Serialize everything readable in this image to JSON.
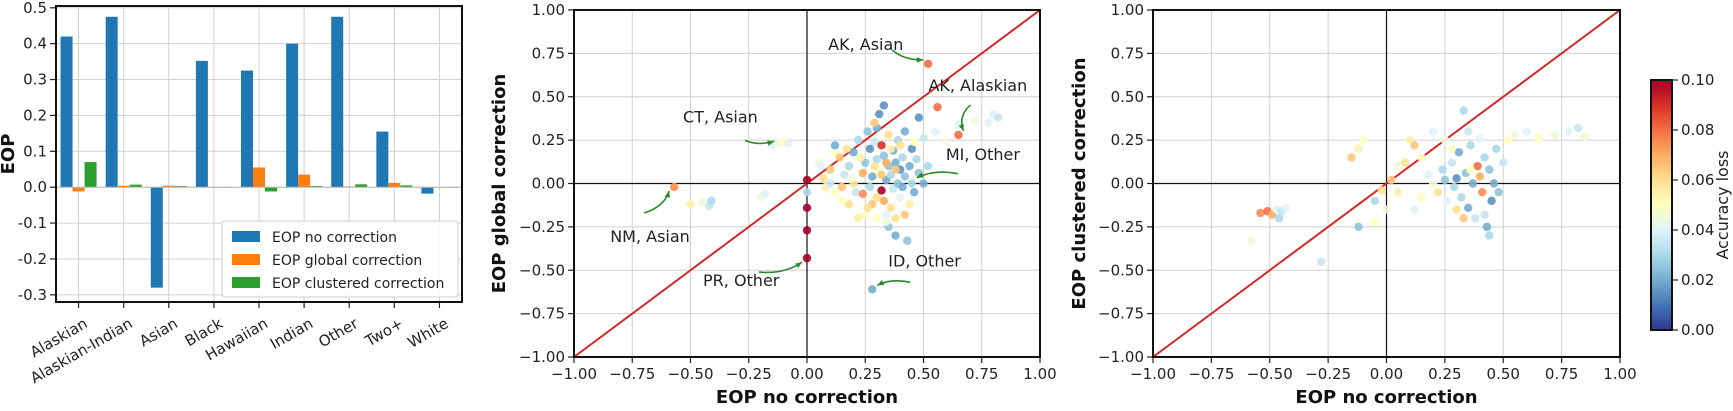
{
  "chart_data": [
    {
      "type": "bar",
      "title": "",
      "xlabel": "",
      "ylabel": "EOP",
      "ylim": [
        -0.32,
        0.505
      ],
      "yticks": [
        -0.3,
        -0.2,
        -0.1,
        0.0,
        0.1,
        0.2,
        0.3,
        0.4,
        0.5
      ],
      "ytick_labels": [
        "-0.3",
        "-0.2",
        "-0.1",
        "0.0",
        "0.1",
        "0.2",
        "0.3",
        "0.4",
        "0.5"
      ],
      "grid": true,
      "legend_position": "bottom-right",
      "categories": [
        "Alaskian",
        "Alaskian-Indian",
        "Asian",
        "Black",
        "Hawaiian",
        "Indian",
        "Other",
        "Two+",
        "White"
      ],
      "series": [
        {
          "name": "EOP no correction",
          "color": "#1f77b4",
          "values": [
            0.42,
            0.475,
            -0.28,
            0.352,
            0.325,
            0.4,
            0.475,
            0.155,
            -0.018
          ]
        },
        {
          "name": "EOP global correction",
          "color": "#ff7f0e",
          "values": [
            -0.012,
            0.004,
            0.004,
            0.0,
            0.055,
            0.035,
            0.002,
            0.012,
            0.0
          ]
        },
        {
          "name": "EOP clustered correction",
          "color": "#2ca02c",
          "values": [
            0.07,
            0.007,
            0.003,
            0.0,
            -0.012,
            0.003,
            0.008,
            0.005,
            0.0
          ]
        }
      ]
    },
    {
      "type": "scatter",
      "xlabel": "EOP no correction",
      "ylabel": "EOP global correction",
      "xlim": [
        -1.0,
        1.0
      ],
      "ylim": [
        -1.0,
        1.0
      ],
      "xticks": [
        -1.0,
        -0.75,
        -0.5,
        -0.25,
        0.0,
        0.25,
        0.5,
        0.75,
        1.0
      ],
      "xtick_labels": [
        "−1.00",
        "−0.75",
        "−0.50",
        "−0.25",
        "0.00",
        "0.25",
        "0.50",
        "0.75",
        "1.00"
      ],
      "yticks": [
        -1.0,
        -0.75,
        -0.5,
        -0.25,
        0.0,
        0.25,
        0.5,
        0.75,
        1.0
      ],
      "ytick_labels": [
        "−1.00",
        "−0.75",
        "−0.50",
        "−0.25",
        "0.00",
        "0.25",
        "0.50",
        "0.75",
        "1.00"
      ],
      "grid": true,
      "diagonal_color": "#d62728",
      "points": [
        [
          0.52,
          0.69,
          0.08
        ],
        [
          0.56,
          0.44,
          0.08
        ],
        [
          0.65,
          0.28,
          0.08
        ],
        [
          -0.57,
          -0.02,
          0.075
        ],
        [
          -0.5,
          -0.12,
          0.055
        ],
        [
          -0.45,
          -0.11,
          0.045
        ],
        [
          -0.42,
          -0.13,
          0.035
        ],
        [
          -0.41,
          -0.1,
          0.03
        ],
        [
          -0.15,
          0.22,
          0.04
        ],
        [
          -0.12,
          0.23,
          0.045
        ],
        [
          -0.1,
          0.24,
          0.05
        ],
        [
          -0.08,
          0.23,
          0.04
        ],
        [
          -0.2,
          -0.08,
          0.045
        ],
        [
          -0.18,
          -0.06,
          0.04
        ],
        [
          0.0,
          0.02,
          0.1
        ],
        [
          0.0,
          -0.14,
          0.1
        ],
        [
          0.0,
          -0.27,
          0.1
        ],
        [
          0.0,
          -0.43,
          0.1
        ],
        [
          0.0,
          -0.05,
          0.03
        ],
        [
          0.05,
          0.12,
          0.045
        ],
        [
          0.07,
          0.03,
          0.06
        ],
        [
          0.08,
          -0.02,
          0.055
        ],
        [
          0.1,
          0.08,
          0.065
        ],
        [
          0.12,
          0.18,
          0.05
        ],
        [
          0.12,
          0.22,
          0.02
        ],
        [
          0.14,
          0.15,
          0.065
        ],
        [
          0.15,
          -0.1,
          0.05
        ],
        [
          0.16,
          0.05,
          0.035
        ],
        [
          0.18,
          -0.12,
          0.06
        ],
        [
          0.18,
          0.1,
          0.03
        ],
        [
          0.2,
          0.0,
          0.06
        ],
        [
          0.2,
          0.18,
          0.02
        ],
        [
          0.21,
          -0.05,
          0.035
        ],
        [
          0.22,
          0.25,
          0.03
        ],
        [
          0.24,
          0.06,
          0.07
        ],
        [
          0.25,
          -0.18,
          0.05
        ],
        [
          0.25,
          0.12,
          0.025
        ],
        [
          0.26,
          0.3,
          0.025
        ],
        [
          0.27,
          0.2,
          0.015
        ],
        [
          0.27,
          -0.02,
          0.03
        ],
        [
          0.28,
          0.04,
          0.02
        ],
        [
          0.28,
          -0.12,
          0.065
        ],
        [
          0.29,
          0.24,
          0.035
        ],
        [
          0.3,
          0.32,
          0.02
        ],
        [
          0.3,
          0.14,
          0.03
        ],
        [
          0.3,
          -0.08,
          0.06
        ],
        [
          0.31,
          0.4,
          0.015
        ],
        [
          0.31,
          0.07,
          0.05
        ],
        [
          0.32,
          0.22,
          0.09
        ],
        [
          0.32,
          -0.04,
          0.1
        ],
        [
          0.33,
          0.45,
          0.015
        ],
        [
          0.33,
          0.16,
          0.025
        ],
        [
          0.33,
          -0.1,
          0.07
        ],
        [
          0.34,
          0.02,
          0.02
        ],
        [
          0.34,
          -0.18,
          0.04
        ],
        [
          0.35,
          0.1,
          0.025
        ],
        [
          0.35,
          0.28,
          0.06
        ],
        [
          0.35,
          -0.25,
          0.025
        ],
        [
          0.36,
          0.05,
          0.03
        ],
        [
          0.36,
          -0.14,
          0.06
        ],
        [
          0.37,
          0.19,
          0.02
        ],
        [
          0.37,
          -0.03,
          0.035
        ],
        [
          0.38,
          0.12,
          0.02
        ],
        [
          0.38,
          -0.3,
          0.02
        ],
        [
          0.39,
          0.25,
          0.03
        ],
        [
          0.39,
          0.0,
          0.025
        ],
        [
          0.4,
          0.08,
          0.015
        ],
        [
          0.4,
          -0.08,
          0.04
        ],
        [
          0.41,
          0.15,
          0.03
        ],
        [
          0.41,
          -0.02,
          0.02
        ],
        [
          0.42,
          0.3,
          0.02
        ],
        [
          0.42,
          0.04,
          0.025
        ],
        [
          0.43,
          -0.33,
          0.025
        ],
        [
          0.44,
          0.1,
          0.02
        ],
        [
          0.45,
          0.0,
          0.03
        ],
        [
          0.45,
          0.2,
          0.015
        ],
        [
          0.46,
          -0.05,
          0.02
        ],
        [
          0.47,
          0.14,
          0.03
        ],
        [
          0.48,
          0.06,
          0.025
        ],
        [
          0.48,
          0.38,
          0.015
        ],
        [
          0.5,
          0.0,
          0.02
        ],
        [
          0.5,
          0.26,
          0.035
        ],
        [
          0.52,
          0.1,
          0.03
        ],
        [
          0.55,
          0.3,
          0.04
        ],
        [
          0.6,
          0.24,
          0.045
        ],
        [
          0.65,
          0.34,
          0.04
        ],
        [
          0.72,
          0.36,
          0.045
        ],
        [
          0.78,
          0.35,
          0.04
        ],
        [
          0.8,
          0.4,
          0.04
        ],
        [
          0.82,
          0.38,
          0.035
        ],
        [
          0.28,
          -0.61,
          0.02
        ],
        [
          0.22,
          -0.2,
          0.055
        ],
        [
          0.3,
          -0.2,
          0.05
        ],
        [
          0.34,
          -0.22,
          0.045
        ],
        [
          0.26,
          -0.14,
          0.06
        ],
        [
          0.15,
          -0.02,
          0.065
        ],
        [
          0.19,
          0.03,
          0.045
        ],
        [
          0.23,
          0.15,
          0.055
        ],
        [
          0.29,
          0.1,
          0.06
        ],
        [
          0.32,
          0.05,
          0.065
        ],
        [
          0.36,
          0.2,
          0.055
        ],
        [
          0.4,
          0.22,
          0.06
        ],
        [
          0.44,
          -0.12,
          0.055
        ],
        [
          0.38,
          -0.2,
          0.06
        ],
        [
          0.46,
          0.24,
          0.05
        ],
        [
          0.42,
          -0.18,
          0.065
        ],
        [
          0.1,
          0.0,
          0.035
        ],
        [
          0.12,
          -0.05,
          0.05
        ],
        [
          0.06,
          0.1,
          0.04
        ],
        [
          0.17,
          0.2,
          0.06
        ],
        [
          0.29,
          0.35,
          0.065
        ],
        [
          0.34,
          0.12,
          0.07
        ],
        [
          0.24,
          -0.06,
          0.075
        ],
        [
          0.38,
          0.08,
          0.065
        ]
      ],
      "annotations": [
        {
          "text": "AK, Asian",
          "x": 0.52,
          "y": 0.69
        },
        {
          "text": "AK, Alaskian",
          "x": 0.65,
          "y": 0.28
        },
        {
          "text": "CT, Asian",
          "x": -0.12,
          "y": 0.22
        },
        {
          "text": "MI, Other",
          "x": 0.45,
          "y": 0.01
        },
        {
          "text": "NM, Asian",
          "x": -0.57,
          "y": -0.02
        },
        {
          "text": "PR, Other",
          "x": 0.0,
          "y": -0.43
        },
        {
          "text": "ID, Other",
          "x": 0.28,
          "y": -0.61
        }
      ]
    },
    {
      "type": "scatter",
      "xlabel": "EOP no correction",
      "ylabel": "EOP clustered correction",
      "xlim": [
        -1.0,
        1.0
      ],
      "ylim": [
        -1.0,
        1.0
      ],
      "xticks": [
        -1.0,
        -0.75,
        -0.5,
        -0.25,
        0.0,
        0.25,
        0.5,
        0.75,
        1.0
      ],
      "xtick_labels": [
        "−1.00",
        "−0.75",
        "−0.50",
        "−0.25",
        "0.00",
        "0.25",
        "0.50",
        "0.75",
        "1.00"
      ],
      "yticks": [
        -1.0,
        -0.75,
        -0.5,
        -0.25,
        0.0,
        0.25,
        0.5,
        0.75,
        1.0
      ],
      "ytick_labels": [
        "−1.00",
        "−0.75",
        "−0.50",
        "−0.25",
        "0.00",
        "0.25",
        "0.50",
        "0.75",
        "1.00"
      ],
      "grid": true,
      "diagonal_color": "#d62728",
      "points": [
        [
          -0.54,
          -0.17,
          0.075
        ],
        [
          -0.51,
          -0.16,
          0.08
        ],
        [
          -0.49,
          -0.18,
          0.07
        ],
        [
          -0.47,
          -0.15,
          0.04
        ],
        [
          -0.46,
          -0.2,
          0.03
        ],
        [
          -0.45,
          -0.16,
          0.035
        ],
        [
          -0.43,
          -0.14,
          0.04
        ],
        [
          -0.58,
          -0.33,
          0.045
        ],
        [
          -0.28,
          -0.45,
          0.035
        ],
        [
          -0.12,
          -0.25,
          0.025
        ],
        [
          -0.05,
          -0.22,
          0.05
        ],
        [
          -0.02,
          -0.04,
          0.06
        ],
        [
          0.02,
          0.02,
          0.065
        ],
        [
          -0.1,
          0.25,
          0.05
        ],
        [
          -0.12,
          0.2,
          0.055
        ],
        [
          0.05,
          0.1,
          0.045
        ],
        [
          0.08,
          0.12,
          0.06
        ],
        [
          0.1,
          0.25,
          0.055
        ],
        [
          0.12,
          0.22,
          0.065
        ],
        [
          0.15,
          0.15,
          0.05
        ],
        [
          0.18,
          0.05,
          0.04
        ],
        [
          0.2,
          0.0,
          0.045
        ],
        [
          0.22,
          -0.05,
          0.06
        ],
        [
          0.24,
          0.08,
          0.03
        ],
        [
          0.25,
          0.02,
          0.025
        ],
        [
          0.26,
          -0.1,
          0.04
        ],
        [
          0.28,
          0.12,
          0.035
        ],
        [
          0.29,
          -0.02,
          0.03
        ],
        [
          0.3,
          0.03,
          0.015
        ],
        [
          0.31,
          0.18,
          0.02
        ],
        [
          0.32,
          -0.08,
          0.03
        ],
        [
          0.33,
          0.42,
          0.03
        ],
        [
          0.34,
          0.06,
          0.025
        ],
        [
          0.35,
          -0.14,
          0.02
        ],
        [
          0.36,
          0.22,
          0.03
        ],
        [
          0.37,
          0.0,
          0.02
        ],
        [
          0.38,
          -0.2,
          0.035
        ],
        [
          0.39,
          0.1,
          0.08
        ],
        [
          0.4,
          0.04,
          0.07
        ],
        [
          0.41,
          -0.05,
          0.075
        ],
        [
          0.42,
          0.15,
          0.03
        ],
        [
          0.43,
          -0.25,
          0.02
        ],
        [
          0.44,
          0.08,
          0.025
        ],
        [
          0.45,
          -0.1,
          0.015
        ],
        [
          0.46,
          0.0,
          0.02
        ],
        [
          0.47,
          0.2,
          0.03
        ],
        [
          0.48,
          -0.05,
          0.025
        ],
        [
          0.5,
          0.12,
          0.035
        ],
        [
          0.52,
          0.25,
          0.05
        ],
        [
          0.55,
          0.28,
          0.045
        ],
        [
          0.6,
          0.3,
          0.04
        ],
        [
          0.65,
          0.26,
          0.05
        ],
        [
          0.72,
          0.28,
          0.045
        ],
        [
          0.78,
          0.3,
          0.04
        ],
        [
          0.82,
          0.32,
          0.035
        ],
        [
          0.85,
          0.27,
          0.045
        ],
        [
          0.2,
          0.3,
          0.04
        ],
        [
          0.25,
          0.25,
          0.045
        ],
        [
          0.28,
          0.2,
          0.05
        ],
        [
          0.3,
          -0.15,
          0.06
        ],
        [
          0.33,
          -0.2,
          0.065
        ],
        [
          0.36,
          0.08,
          0.05
        ],
        [
          0.4,
          0.26,
          0.04
        ],
        [
          0.42,
          -0.18,
          0.035
        ],
        [
          0.44,
          -0.3,
          0.03
        ],
        [
          0.35,
          0.3,
          0.035
        ],
        [
          0.15,
          -0.08,
          0.05
        ],
        [
          0.12,
          -0.15,
          0.04
        ],
        [
          -0.15,
          0.15,
          0.065
        ],
        [
          -0.05,
          -0.1,
          0.03
        ],
        [
          0.0,
          -0.15,
          0.045
        ],
        [
          0.05,
          -0.05,
          0.055
        ]
      ]
    }
  ],
  "colorbar": {
    "label": "Accuracy loss",
    "min": 0.0,
    "max": 0.1,
    "ticks": [
      0.0,
      0.02,
      0.04,
      0.06,
      0.08,
      0.1
    ],
    "tick_labels": [
      "0.00",
      "0.02",
      "0.04",
      "0.06",
      "0.08",
      "0.10"
    ],
    "colormap": "RdYlBu_r",
    "stops": [
      "#313695",
      "#4575b4",
      "#74add1",
      "#abd9e9",
      "#e0f3f8",
      "#ffffbf",
      "#fee090",
      "#fdae61",
      "#f46d43",
      "#d73027",
      "#a50026"
    ]
  }
}
